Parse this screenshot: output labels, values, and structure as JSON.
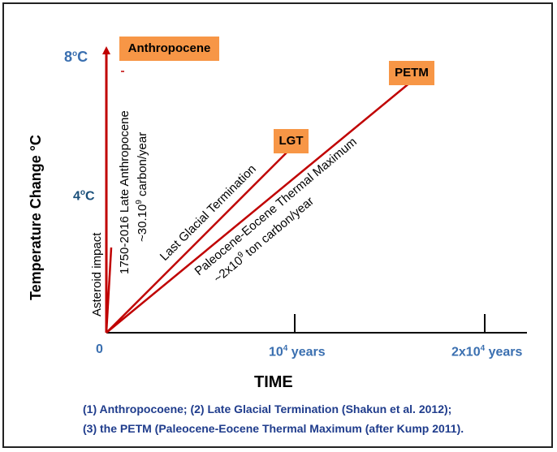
{
  "axes": {
    "y_title": "Temperature Change °C",
    "x_title": "TIME",
    "y_tick_8_base": "8",
    "y_tick_8_sup": "o",
    "y_tick_8_unit": "C",
    "y_tick_4_base": "4",
    "y_tick_4_sup": "o",
    "y_tick_4_unit": "C",
    "x_tick_0": "0",
    "x_tick_1_base": "10",
    "x_tick_1_sup": "4",
    "x_tick_1_unit": " years",
    "x_tick_2_base": "2x10",
    "x_tick_2_sup": "4",
    "x_tick_2_unit": " years"
  },
  "tags": {
    "anthropocene": "Anthropocene",
    "lgt": "LGT",
    "petm": "PETM"
  },
  "line_labels": {
    "asteroid": "Asteroid impact",
    "anthro_line1": "1750-2016 Late Anthropocene",
    "anthro_line2_a": "~30.10",
    "anthro_line2_sup": "9",
    "anthro_line2_b": " carbon/year",
    "lgt": "Last Glacial Termination",
    "petm_line1": "Paleocene-Eocene Thermal Maximum",
    "petm_line2_a": "~2x10",
    "petm_line2_sup": "9",
    "petm_line2_b": " ton carbon/year"
  },
  "notes": {
    "line1": "(1) Anthropocoene; (2) Late Glacial Termination (Shakun et al. 2012);",
    "line2": "(3) the PETM (Paleocene-Eocene Thermal Maximum (after Kump 2011)."
  },
  "colors": {
    "arrow": "#c00000",
    "tag": "#f79646",
    "tick_label": "#3a6fb0",
    "note": "#1f3c8c"
  }
}
